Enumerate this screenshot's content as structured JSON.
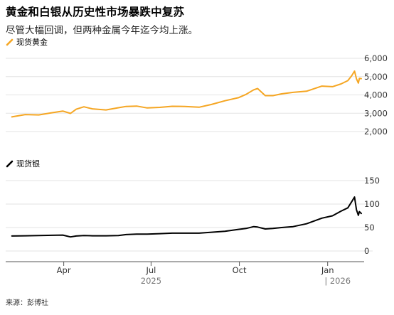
{
  "title": "黄金和白银从历史性市场暴跌中复苏",
  "subtitle": "尽管大幅回调，但两种金属今年迄今均上涨。",
  "source": "来源：彭博社",
  "colors": {
    "gold": "#f5a623",
    "silver": "#000000",
    "grid": "#e3e3e3",
    "axis": "#555555",
    "text": "#000000"
  },
  "chart_data": [
    {
      "type": "line",
      "title": "",
      "xlabel": "",
      "ylabel": "",
      "series": [
        {
          "name": "现货黄金",
          "x": [
            "2025-02-06",
            "2025-02-20",
            "2025-03-06",
            "2025-03-20",
            "2025-03-31",
            "2025-04-08",
            "2025-04-14",
            "2025-04-22",
            "2025-05-01",
            "2025-05-15",
            "2025-05-28",
            "2025-06-05",
            "2025-06-16",
            "2025-06-27",
            "2025-07-10",
            "2025-07-23",
            "2025-08-05",
            "2025-08-20",
            "2025-09-02",
            "2025-09-16",
            "2025-09-30",
            "2025-10-08",
            "2025-10-16",
            "2025-10-20",
            "2025-10-28",
            "2025-11-05",
            "2025-11-14",
            "2025-11-26",
            "2025-12-10",
            "2025-12-26",
            "2026-01-06",
            "2026-01-15",
            "2026-01-22",
            "2026-01-26",
            "2026-01-29",
            "2026-01-31",
            "2026-02-02",
            "2026-02-03",
            "2026-02-05"
          ],
          "y": [
            2800,
            2930,
            2910,
            3030,
            3120,
            2990,
            3220,
            3350,
            3240,
            3180,
            3300,
            3370,
            3390,
            3290,
            3320,
            3380,
            3370,
            3330,
            3480,
            3680,
            3850,
            4030,
            4280,
            4350,
            3960,
            3960,
            4060,
            4140,
            4200,
            4480,
            4450,
            4600,
            4780,
            5050,
            5300,
            4880,
            4650,
            4900,
            4890
          ]
        }
      ],
      "ylim": [
        2000,
        6000
      ],
      "yticks": [
        "2,000",
        "3,000",
        "4,000",
        "5,000",
        "6,000"
      ],
      "grid": true
    },
    {
      "type": "line",
      "title": "",
      "xlabel": "",
      "ylabel": "",
      "series": [
        {
          "name": "现货银",
          "x": [
            "2025-02-06",
            "2025-02-20",
            "2025-03-06",
            "2025-03-20",
            "2025-03-31",
            "2025-04-08",
            "2025-04-14",
            "2025-04-22",
            "2025-05-01",
            "2025-05-15",
            "2025-05-28",
            "2025-06-05",
            "2025-06-16",
            "2025-06-27",
            "2025-07-10",
            "2025-07-23",
            "2025-08-05",
            "2025-08-20",
            "2025-09-02",
            "2025-09-16",
            "2025-09-30",
            "2025-10-08",
            "2025-10-16",
            "2025-10-20",
            "2025-10-28",
            "2025-11-05",
            "2025-11-14",
            "2025-11-26",
            "2025-12-10",
            "2025-12-26",
            "2026-01-06",
            "2026-01-15",
            "2026-01-22",
            "2026-01-26",
            "2026-01-29",
            "2026-01-31",
            "2026-02-02",
            "2026-02-03",
            "2026-02-05"
          ],
          "y": [
            32,
            32.5,
            33,
            33.5,
            34,
            30,
            32,
            33,
            32.5,
            32.5,
            33,
            35,
            36,
            36,
            37,
            38,
            38,
            38,
            40,
            42,
            46,
            48,
            52,
            51,
            47,
            48,
            50,
            52,
            58,
            70,
            75,
            85,
            92,
            105,
            115,
            88,
            76,
            84,
            80
          ]
        }
      ],
      "ylim": [
        0,
        150
      ],
      "yticks": [
        "0",
        "50",
        "100",
        "150"
      ],
      "grid": true
    }
  ],
  "x_axis": {
    "min": "2025-02-01",
    "max": "2026-02-08",
    "ticks": [
      {
        "date": "2025-04-01",
        "label": "Apr"
      },
      {
        "date": "2025-07-01",
        "label": "Jul"
      },
      {
        "date": "2025-10-01",
        "label": "Oct"
      },
      {
        "date": "2026-01-01",
        "label": "Jan"
      }
    ],
    "years": [
      {
        "date": "2025-07-01",
        "label": "2025"
      },
      {
        "date": "2026-01-01",
        "label": "| 2026"
      }
    ]
  }
}
